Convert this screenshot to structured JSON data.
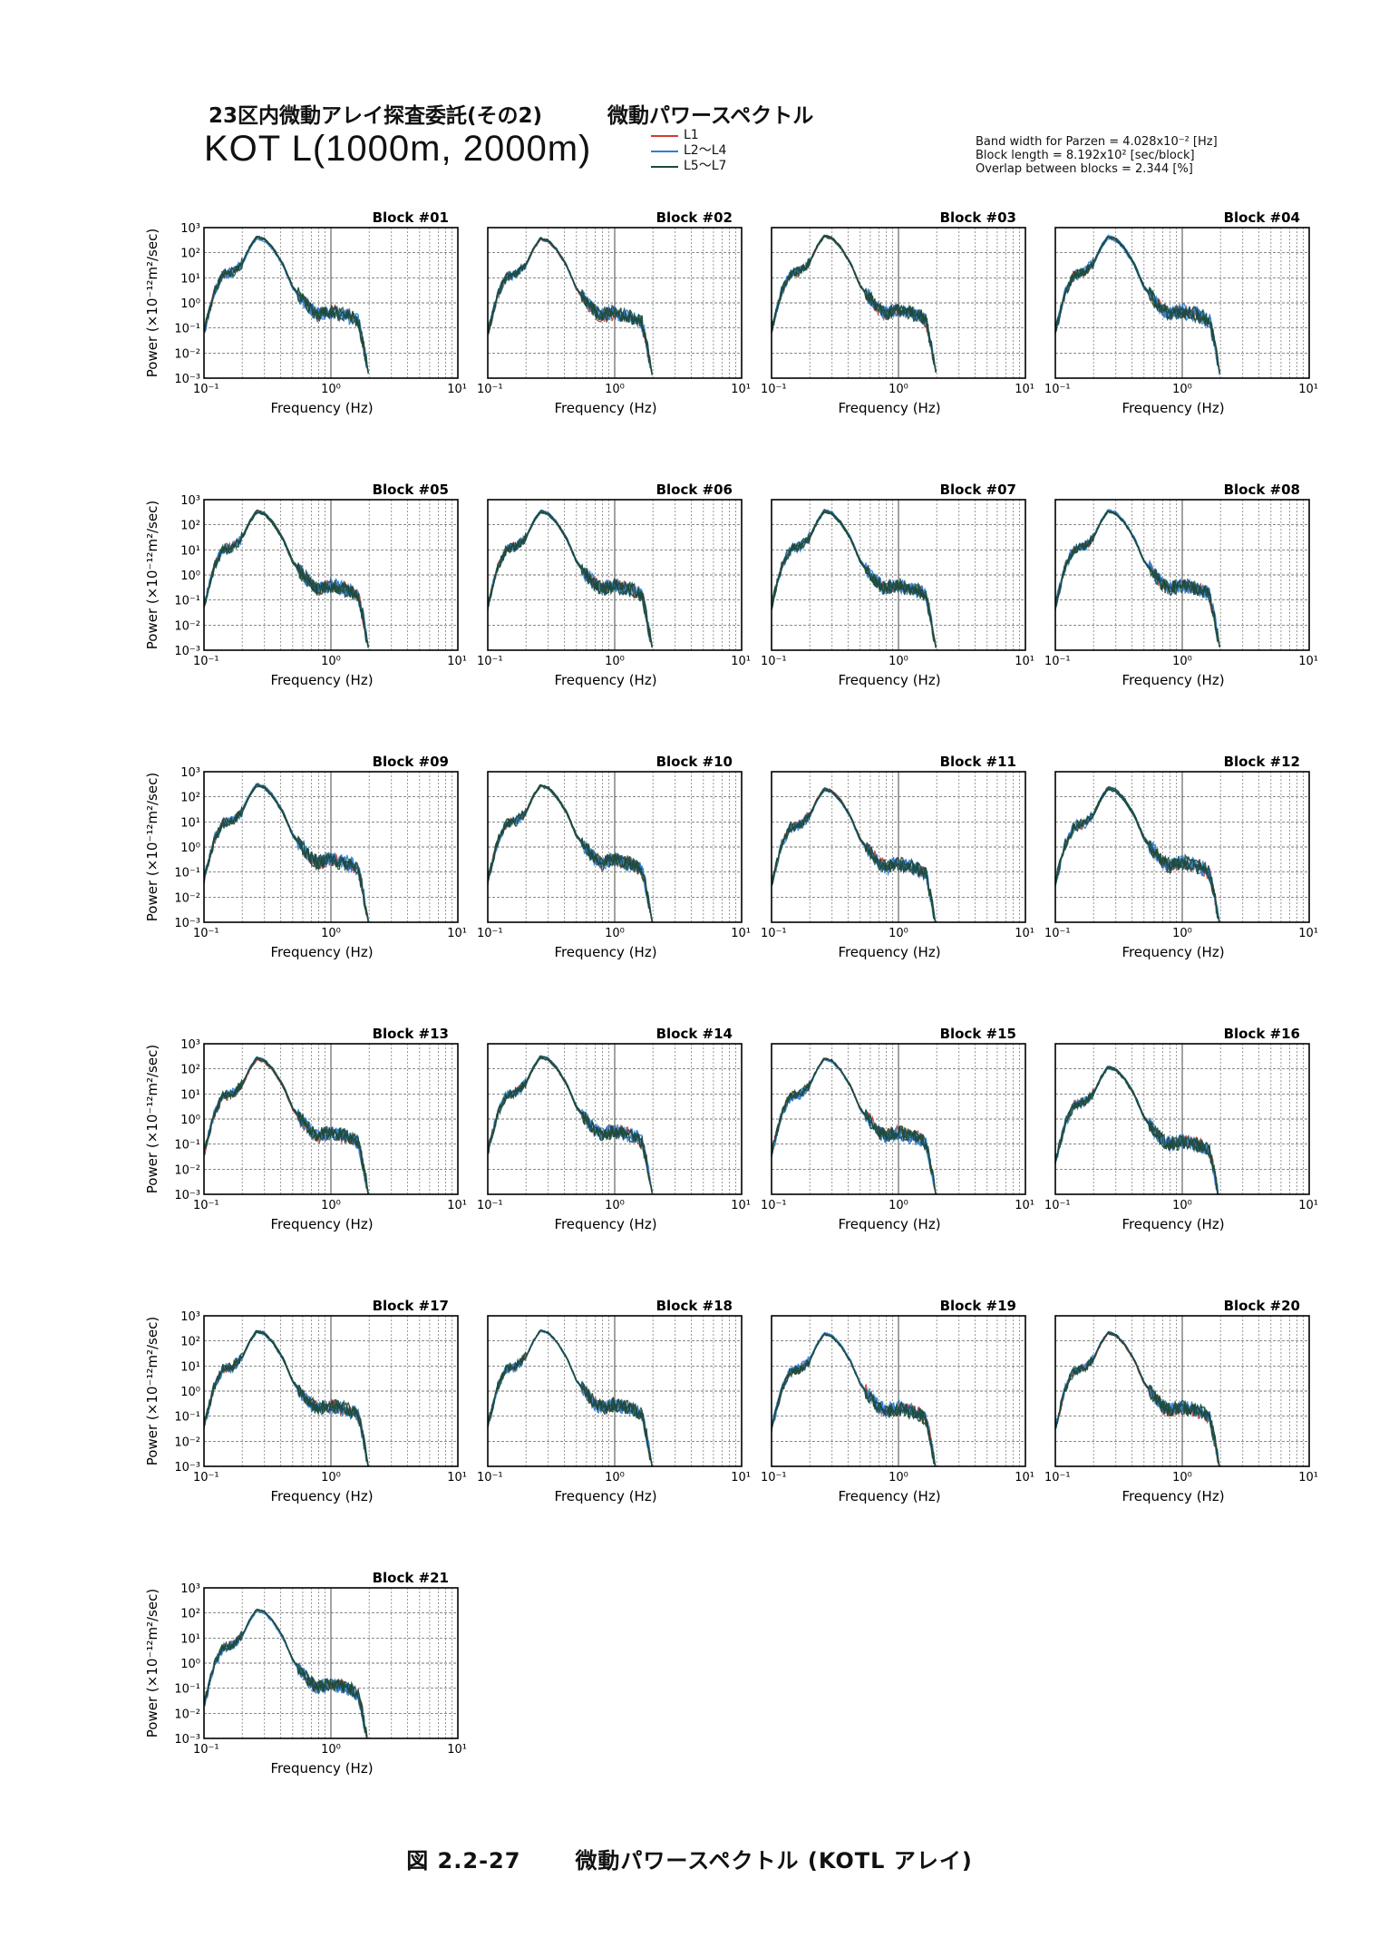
{
  "header": {
    "title": "23区内微動アレイ探査委託(その2)",
    "subtitle": "微動パワースペクトル",
    "site": "KOT L(1000m, 2000m)",
    "legend": [
      {
        "label": "L1",
        "color": "#d23a32"
      },
      {
        "label": "L2～L4",
        "color": "#2f7fd6"
      },
      {
        "label": "L5～L7",
        "color": "#1f4a3a"
      }
    ],
    "params": [
      "Band width for Parzen = 4.028x10⁻² [Hz]",
      "Block length = 8.192x10² [sec/block]",
      "Overlap between blocks = 2.344 [%]"
    ]
  },
  "axes": {
    "xlabel": "Frequency (Hz)",
    "ylabel": "Power (×10⁻¹²m²/sec)",
    "x_ticks": [
      "10⁻¹",
      "10⁰",
      "10¹"
    ],
    "y_ticks": [
      "10³",
      "10²",
      "10¹",
      "10⁰",
      "10⁻¹",
      "10⁻²",
      "10⁻³"
    ]
  },
  "chart_data": {
    "type": "line",
    "x_scale": "log",
    "y_scale": "log",
    "xlim": [
      0.1,
      10
    ],
    "ylim": [
      0.001,
      1000
    ],
    "grid": true,
    "xlabel": "Frequency (Hz)",
    "ylabel": "Power (×10⁻¹²m²/sec)",
    "series_names": [
      "L1",
      "L2～L4",
      "L5～L7"
    ],
    "blocks": [
      {
        "title": "Block #01",
        "peak": 400
      },
      {
        "title": "Block #02",
        "peak": 380
      },
      {
        "title": "Block #03",
        "peak": 450
      },
      {
        "title": "Block #04",
        "peak": 420
      },
      {
        "title": "Block #05",
        "peak": 340
      },
      {
        "title": "Block #06",
        "peak": 330
      },
      {
        "title": "Block #07",
        "peak": 350
      },
      {
        "title": "Block #08",
        "peak": 360
      },
      {
        "title": "Block #09",
        "peak": 300
      },
      {
        "title": "Block #10",
        "peak": 290
      },
      {
        "title": "Block #11",
        "peak": 200
      },
      {
        "title": "Block #12",
        "peak": 220
      },
      {
        "title": "Block #13",
        "peak": 260
      },
      {
        "title": "Block #14",
        "peak": 300
      },
      {
        "title": "Block #15",
        "peak": 260
      },
      {
        "title": "Block #16",
        "peak": 120
      },
      {
        "title": "Block #17",
        "peak": 250
      },
      {
        "title": "Block #18",
        "peak": 260
      },
      {
        "title": "Block #19",
        "peak": 200
      },
      {
        "title": "Block #20",
        "peak": 220
      },
      {
        "title": "Block #21",
        "peak": 130
      }
    ],
    "spectrum_shape": {
      "freq_hz": [
        0.1,
        0.12,
        0.14,
        0.17,
        0.2,
        0.23,
        0.26,
        0.3,
        0.35,
        0.42,
        0.5,
        0.6,
        0.7,
        0.8,
        0.9,
        1.0,
        1.15,
        1.3,
        1.5,
        1.65,
        1.8,
        2.0
      ],
      "power_rel_peak": [
        0.00017,
        0.006,
        0.03,
        0.04,
        0.09,
        0.4,
        1.0,
        0.8,
        0.35,
        0.08,
        0.01,
        0.003,
        0.0012,
        0.0008,
        0.001,
        0.0011,
        0.0009,
        0.0008,
        0.0006,
        0.0004,
        5e-05,
        2.5e-06
      ]
    }
  },
  "caption": {
    "number": "図 2.2-27",
    "text": "微動パワースペクトル (KOTL アレイ)"
  }
}
